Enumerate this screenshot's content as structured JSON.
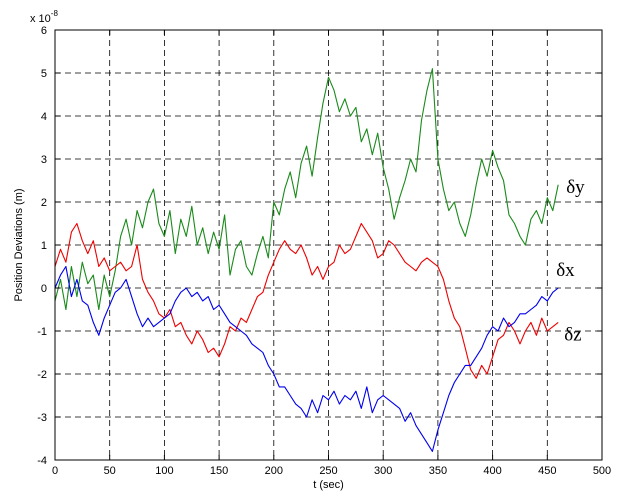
{
  "chart_data": {
    "type": "line",
    "title": "",
    "xlabel": "t (sec)",
    "ylabel": "Position Deviations (m)",
    "y_exponent_label": "x 10",
    "y_exponent_power": "-8",
    "xlim": [
      0,
      500
    ],
    "ylim": [
      -4,
      6
    ],
    "x_ticks": [
      0,
      50,
      100,
      150,
      200,
      250,
      300,
      350,
      400,
      450,
      500
    ],
    "y_ticks": [
      -4,
      -3,
      -2,
      -1,
      0,
      1,
      2,
      3,
      4,
      5,
      6
    ],
    "grid": true,
    "series": [
      {
        "name": "δy",
        "color": "#1a8a1a",
        "x": [
          0,
          5,
          10,
          15,
          20,
          25,
          30,
          35,
          40,
          45,
          50,
          55,
          60,
          65,
          70,
          75,
          80,
          85,
          90,
          95,
          100,
          105,
          110,
          115,
          120,
          125,
          130,
          135,
          140,
          145,
          150,
          155,
          160,
          165,
          170,
          175,
          180,
          185,
          190,
          195,
          200,
          205,
          210,
          215,
          220,
          225,
          230,
          235,
          240,
          245,
          250,
          255,
          260,
          265,
          270,
          275,
          280,
          285,
          290,
          295,
          300,
          305,
          310,
          315,
          320,
          325,
          330,
          335,
          340,
          345,
          350,
          355,
          360,
          365,
          370,
          375,
          380,
          385,
          390,
          395,
          400,
          405,
          410,
          415,
          420,
          425,
          430,
          435,
          440,
          445,
          450,
          455,
          460
        ],
        "values": [
          -0.3,
          0.2,
          -0.5,
          0.5,
          -0.2,
          0.6,
          0.1,
          0.3,
          -0.5,
          0.3,
          -0.2,
          0.4,
          1.2,
          1.6,
          1.0,
          1.8,
          1.4,
          2.0,
          2.3,
          1.5,
          1.2,
          1.8,
          0.8,
          1.6,
          1.2,
          1.9,
          1.0,
          1.4,
          0.8,
          1.3,
          0.9,
          1.7,
          0.3,
          0.9,
          1.1,
          0.5,
          0.3,
          0.8,
          1.2,
          0.7,
          2.0,
          1.7,
          2.3,
          2.7,
          2.1,
          2.9,
          3.3,
          2.6,
          3.5,
          4.3,
          4.9,
          4.6,
          4.1,
          4.4,
          4.0,
          4.2,
          3.4,
          3.7,
          3.1,
          3.6,
          2.8,
          2.3,
          1.6,
          2.1,
          2.5,
          3.0,
          2.7,
          3.9,
          4.6,
          5.1,
          3.0,
          2.3,
          1.8,
          2.0,
          1.5,
          1.2,
          1.7,
          2.4,
          3.0,
          2.6,
          3.2,
          2.8,
          2.5,
          1.7,
          1.5,
          1.2,
          1.0,
          1.6,
          1.8,
          1.5,
          2.1,
          1.8,
          2.4
        ]
      },
      {
        "name": "δx",
        "color": "#0000ee",
        "x": [
          0,
          5,
          10,
          15,
          20,
          25,
          30,
          35,
          40,
          45,
          50,
          55,
          60,
          65,
          70,
          75,
          80,
          85,
          90,
          95,
          100,
          105,
          110,
          115,
          120,
          125,
          130,
          135,
          140,
          145,
          150,
          155,
          160,
          165,
          170,
          175,
          180,
          185,
          190,
          195,
          200,
          205,
          210,
          215,
          220,
          225,
          230,
          235,
          240,
          245,
          250,
          255,
          260,
          265,
          270,
          275,
          280,
          285,
          290,
          295,
          300,
          305,
          310,
          315,
          320,
          325,
          330,
          335,
          340,
          345,
          350,
          355,
          360,
          365,
          370,
          375,
          380,
          385,
          390,
          395,
          400,
          405,
          410,
          415,
          420,
          425,
          430,
          435,
          440,
          445,
          450,
          455,
          460
        ],
        "values": [
          0.0,
          0.3,
          0.5,
          -0.2,
          0.2,
          -0.3,
          -0.4,
          -0.8,
          -1.1,
          -0.7,
          -0.4,
          -0.1,
          0.0,
          0.2,
          -0.2,
          -0.6,
          -0.9,
          -0.7,
          -0.9,
          -0.8,
          -0.7,
          -0.6,
          -0.3,
          -0.1,
          0.0,
          -0.2,
          -0.1,
          -0.3,
          -0.2,
          -0.5,
          -0.4,
          -0.6,
          -0.8,
          -0.9,
          -1.0,
          -1.1,
          -1.3,
          -1.4,
          -1.5,
          -1.8,
          -2.0,
          -2.3,
          -2.3,
          -2.5,
          -2.7,
          -2.8,
          -3.0,
          -2.6,
          -2.9,
          -2.5,
          -2.6,
          -2.4,
          -2.7,
          -2.5,
          -2.6,
          -2.4,
          -2.8,
          -2.3,
          -2.9,
          -2.6,
          -2.5,
          -2.6,
          -2.7,
          -2.8,
          -3.1,
          -2.9,
          -3.2,
          -3.4,
          -3.6,
          -3.8,
          -3.3,
          -2.9,
          -2.5,
          -2.2,
          -2.0,
          -1.8,
          -1.8,
          -1.6,
          -1.4,
          -1.1,
          -0.9,
          -1.0,
          -0.7,
          -0.9,
          -0.8,
          -0.6,
          -0.6,
          -0.5,
          -0.4,
          -0.2,
          -0.3,
          -0.1,
          0.0
        ]
      },
      {
        "name": "δz",
        "color": "#ee0000",
        "x": [
          0,
          5,
          10,
          15,
          20,
          25,
          30,
          35,
          40,
          45,
          50,
          55,
          60,
          65,
          70,
          75,
          80,
          85,
          90,
          95,
          100,
          105,
          110,
          115,
          120,
          125,
          130,
          135,
          140,
          145,
          150,
          155,
          160,
          165,
          170,
          175,
          180,
          185,
          190,
          195,
          200,
          205,
          210,
          215,
          220,
          225,
          230,
          235,
          240,
          245,
          250,
          255,
          260,
          265,
          270,
          275,
          280,
          285,
          290,
          295,
          300,
          305,
          310,
          315,
          320,
          325,
          330,
          335,
          340,
          345,
          350,
          355,
          360,
          365,
          370,
          375,
          380,
          385,
          390,
          395,
          400,
          405,
          410,
          415,
          420,
          425,
          430,
          435,
          440,
          445,
          450,
          455,
          460
        ],
        "values": [
          0.5,
          0.9,
          0.6,
          1.3,
          1.5,
          1.1,
          0.8,
          1.1,
          0.5,
          0.7,
          0.4,
          0.5,
          0.6,
          0.4,
          0.5,
          1.0,
          0.2,
          -0.1,
          -0.3,
          -0.6,
          -0.7,
          -0.5,
          -0.9,
          -0.8,
          -1.1,
          -1.3,
          -1.0,
          -1.2,
          -1.5,
          -1.4,
          -1.6,
          -1.3,
          -0.9,
          -1.0,
          -0.7,
          -0.8,
          -0.5,
          -0.2,
          -0.1,
          0.3,
          0.6,
          0.9,
          1.1,
          0.9,
          0.8,
          1.0,
          0.7,
          0.3,
          0.5,
          0.2,
          0.5,
          0.6,
          1.0,
          0.8,
          0.9,
          1.2,
          1.5,
          1.3,
          1.1,
          0.7,
          0.8,
          1.1,
          1.0,
          0.8,
          0.6,
          0.5,
          0.4,
          0.6,
          0.7,
          0.6,
          0.5,
          0.2,
          -0.3,
          -0.7,
          -0.9,
          -1.4,
          -1.9,
          -2.1,
          -1.8,
          -2.0,
          -1.6,
          -1.2,
          -1.1,
          -0.8,
          -1.0,
          -1.3,
          -1.0,
          -0.8,
          -1.1,
          -0.7,
          -1.0,
          -0.9,
          -0.8
        ]
      }
    ]
  }
}
